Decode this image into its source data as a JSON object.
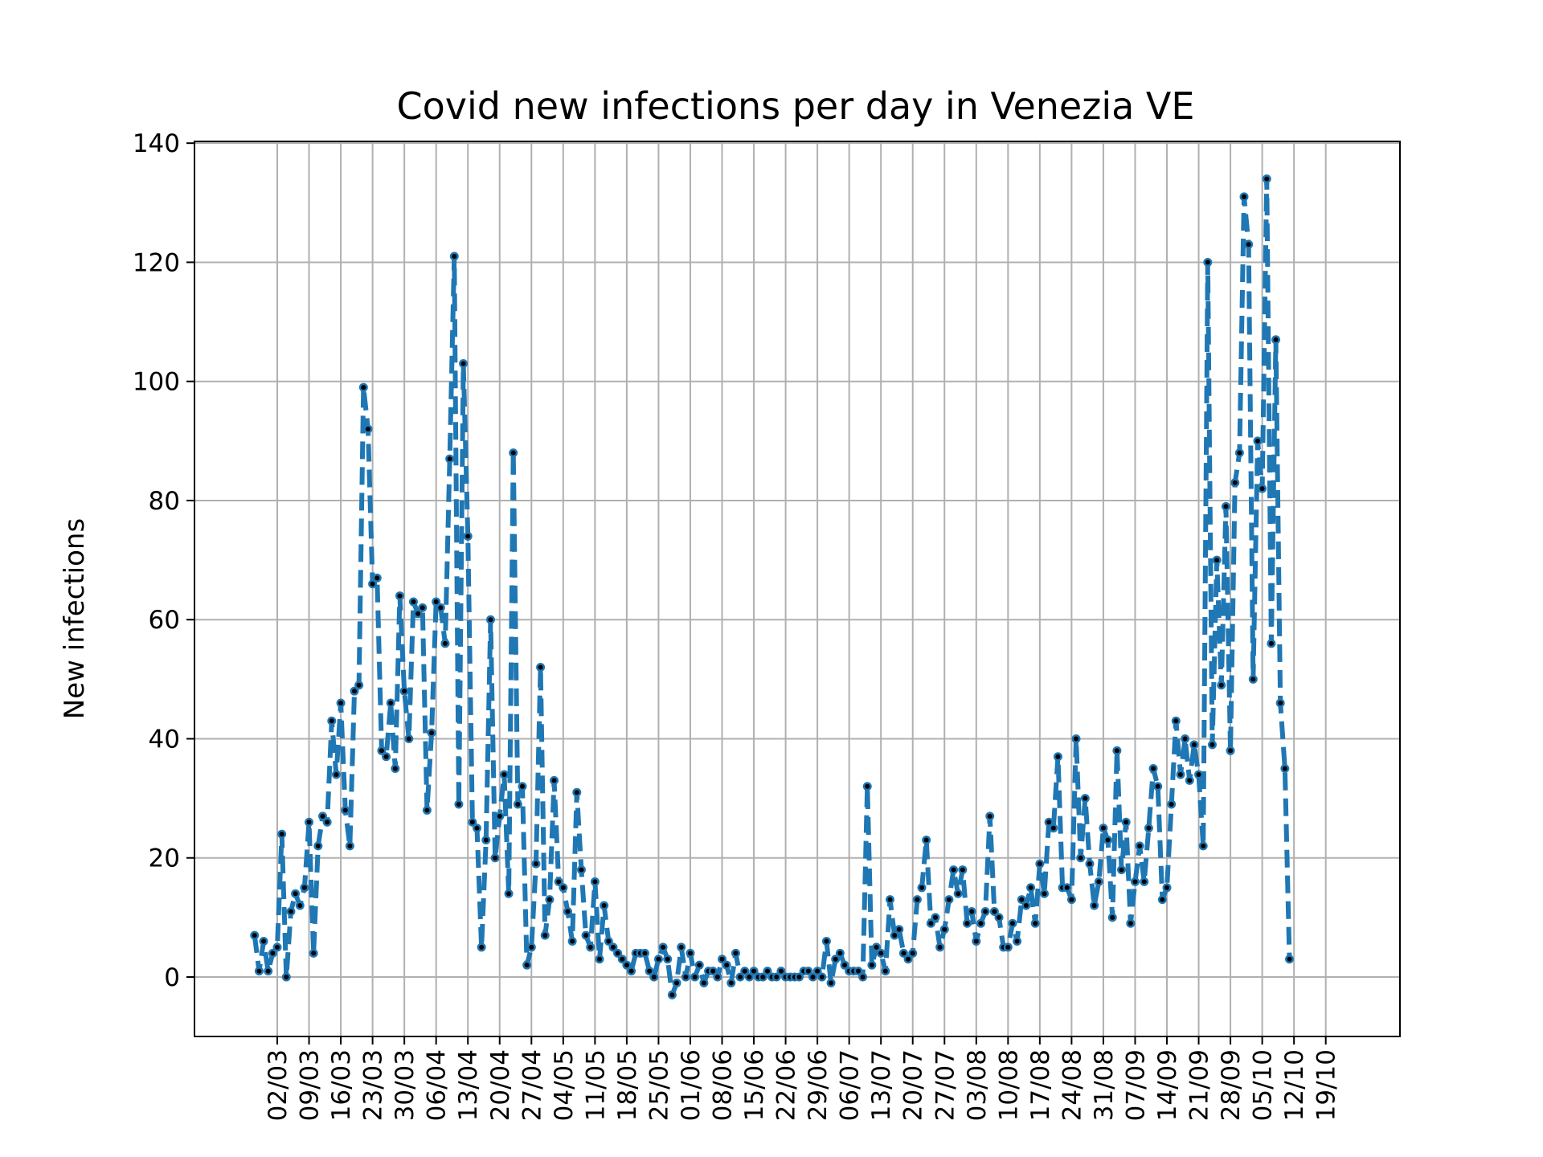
{
  "chart_data": {
    "type": "line",
    "title": "Covid new infections per day in Venezia VE",
    "ylabel": "New infections",
    "xlabel": "",
    "ylim": [
      -10,
      140
    ],
    "yticks": [
      0,
      20,
      40,
      60,
      80,
      100,
      120,
      140
    ],
    "grid": true,
    "legend": "none",
    "line_color": "#1f77b4",
    "marker_color": "#000000",
    "x_start_label": "26/02",
    "xtick_labels": [
      "02/03",
      "09/03",
      "16/03",
      "23/03",
      "30/03",
      "06/04",
      "13/04",
      "20/04",
      "27/04",
      "04/05",
      "11/05",
      "18/05",
      "25/05",
      "01/06",
      "08/06",
      "15/06",
      "22/06",
      "29/06",
      "06/07",
      "13/07",
      "20/07",
      "27/07",
      "03/08",
      "10/08",
      "17/08",
      "24/08",
      "31/08",
      "07/09",
      "14/09",
      "21/09",
      "28/09",
      "05/10",
      "12/10",
      "19/10"
    ],
    "series": [
      {
        "values": [
          7,
          1,
          6,
          1,
          4,
          5,
          24,
          0,
          11,
          14,
          12,
          15,
          26,
          4,
          22,
          27,
          26,
          43,
          34,
          46,
          28,
          22,
          48,
          49,
          99,
          92,
          66,
          67,
          38,
          37,
          46,
          35,
          64,
          48,
          40,
          63,
          61,
          62,
          28,
          41,
          63,
          62,
          56,
          87,
          121,
          29,
          103,
          74,
          26,
          25,
          5,
          23,
          60,
          20,
          27,
          34,
          14,
          88,
          29,
          32,
          2,
          5,
          19,
          52,
          7,
          13,
          33,
          16,
          15,
          11,
          6,
          31,
          18,
          7,
          5,
          16,
          3,
          12,
          6,
          5,
          4,
          3,
          2,
          1,
          4,
          4,
          4,
          1,
          0,
          3,
          5,
          3,
          -3,
          -1,
          5,
          0,
          4,
          0,
          2,
          -1,
          1,
          1,
          0,
          3,
          2,
          -1,
          4,
          0,
          1,
          0,
          1,
          0,
          0,
          1,
          0,
          0,
          1,
          0,
          0,
          0,
          0,
          1,
          1,
          0,
          1,
          0,
          6,
          -1,
          3,
          4,
          2,
          1,
          1,
          1,
          0,
          32,
          2,
          5,
          4,
          1,
          13,
          7,
          8,
          4,
          3,
          4,
          13,
          15,
          23,
          9,
          10,
          5,
          8,
          13,
          18,
          14,
          18,
          9,
          11,
          6,
          9,
          11,
          27,
          11,
          10,
          5,
          5,
          9,
          6,
          13,
          12,
          15,
          9,
          19,
          14,
          26,
          25,
          37,
          15,
          15,
          13,
          40,
          20,
          30,
          19,
          12,
          16,
          25,
          23,
          10,
          38,
          18,
          26,
          9,
          16,
          22,
          16,
          25,
          35,
          32,
          13,
          15,
          29,
          43,
          34,
          40,
          33,
          39,
          34,
          22,
          120,
          39,
          70,
          49,
          79,
          38,
          83,
          88,
          131,
          123,
          50,
          90,
          82,
          134,
          56,
          107,
          46,
          35,
          3
        ]
      }
    ]
  }
}
